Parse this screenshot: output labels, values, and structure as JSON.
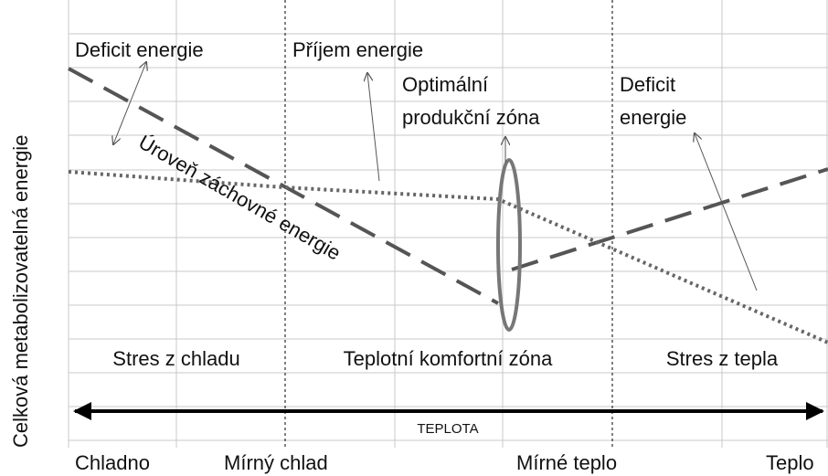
{
  "y_axis_label": "Celková metabolizovatelná energie",
  "annotations": {
    "deficit_left": "Deficit energie",
    "intake": "Příjem energie",
    "optimal_1": "Optimální",
    "optimal_2": "produkční zóna",
    "deficit_right_1": "Deficit",
    "deficit_right_2": "energie",
    "maintenance": "Úroveň záchovné energie"
  },
  "zones": [
    "Stres z chladu",
    "Teplotní komfortní zóna",
    "Stres z tepla"
  ],
  "axis_label": "TEPLOTA",
  "temperature_labels": [
    "Chladno",
    "Mírný chlad",
    "Mírné teplo",
    "Teplo"
  ]
}
